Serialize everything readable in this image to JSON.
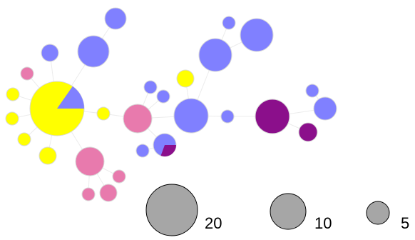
{
  "colors": {
    "yellow": "#ffff00",
    "blue": "#8080ff",
    "pink": "#e87aad",
    "purple": "#8b0f8b",
    "gray": "#a6a6a6",
    "stroke": "#d8d8d8",
    "edge": "#ececec"
  },
  "legend": {
    "items": [
      {
        "label": "20",
        "value": 20
      },
      {
        "label": "10",
        "value": 10
      },
      {
        "label": "5",
        "value": 5
      }
    ]
  }
}
